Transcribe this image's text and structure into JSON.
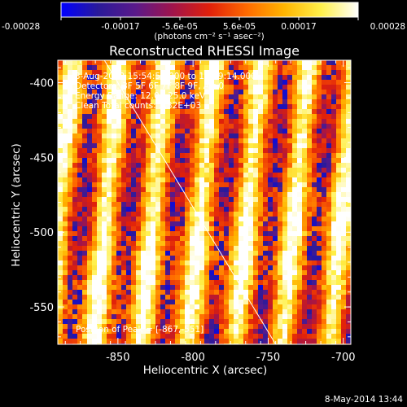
{
  "colorbar": {
    "ticks": [
      "-0.00028",
      "-0.00017",
      "-5.6e-05",
      "5.6e-05",
      "0.00017",
      "0.00028"
    ],
    "unit_label": "(photons cm⁻² s⁻¹ asec⁻²)",
    "range": [
      -0.00028,
      0.00028
    ],
    "colormap": [
      "#0000ff",
      "#2a1a9a",
      "#5a1a8a",
      "#a0144c",
      "#e0200a",
      "#ff6a00",
      "#ffb400",
      "#fff04a",
      "#ffffff"
    ]
  },
  "chart_data": {
    "type": "heatmap",
    "title": "Reconstructed RHESSI Image",
    "xlabel": "Heliocentric X (arcsec)",
    "ylabel": "Heliocentric Y (arcsec)",
    "x_ticks": [
      "-850",
      "-800",
      "-750",
      "-700"
    ],
    "y_ticks": [
      "-400",
      "-450",
      "-500",
      "-550"
    ],
    "xlim": [
      -890,
      -695
    ],
    "ylim": [
      -575,
      -385
    ],
    "annotations": [
      "3-Aug-2012 15:54:56.000 to 15:59:14.000",
      "Detectors: 3F 5F 6F 7F 8F 9F, Att 0",
      "Energy Range: 12.0 - 25.0 keV",
      "Clean    Total counts: 3.32E+03"
    ],
    "peak_label": "Position of Peak = [-867,-551]",
    "peak": [
      -867,
      -551
    ],
    "limb_line": [
      [
        -859,
        -385
      ],
      [
        -745,
        -575
      ]
    ]
  },
  "footer": {
    "timestamp": "8-May-2014 13:44"
  }
}
